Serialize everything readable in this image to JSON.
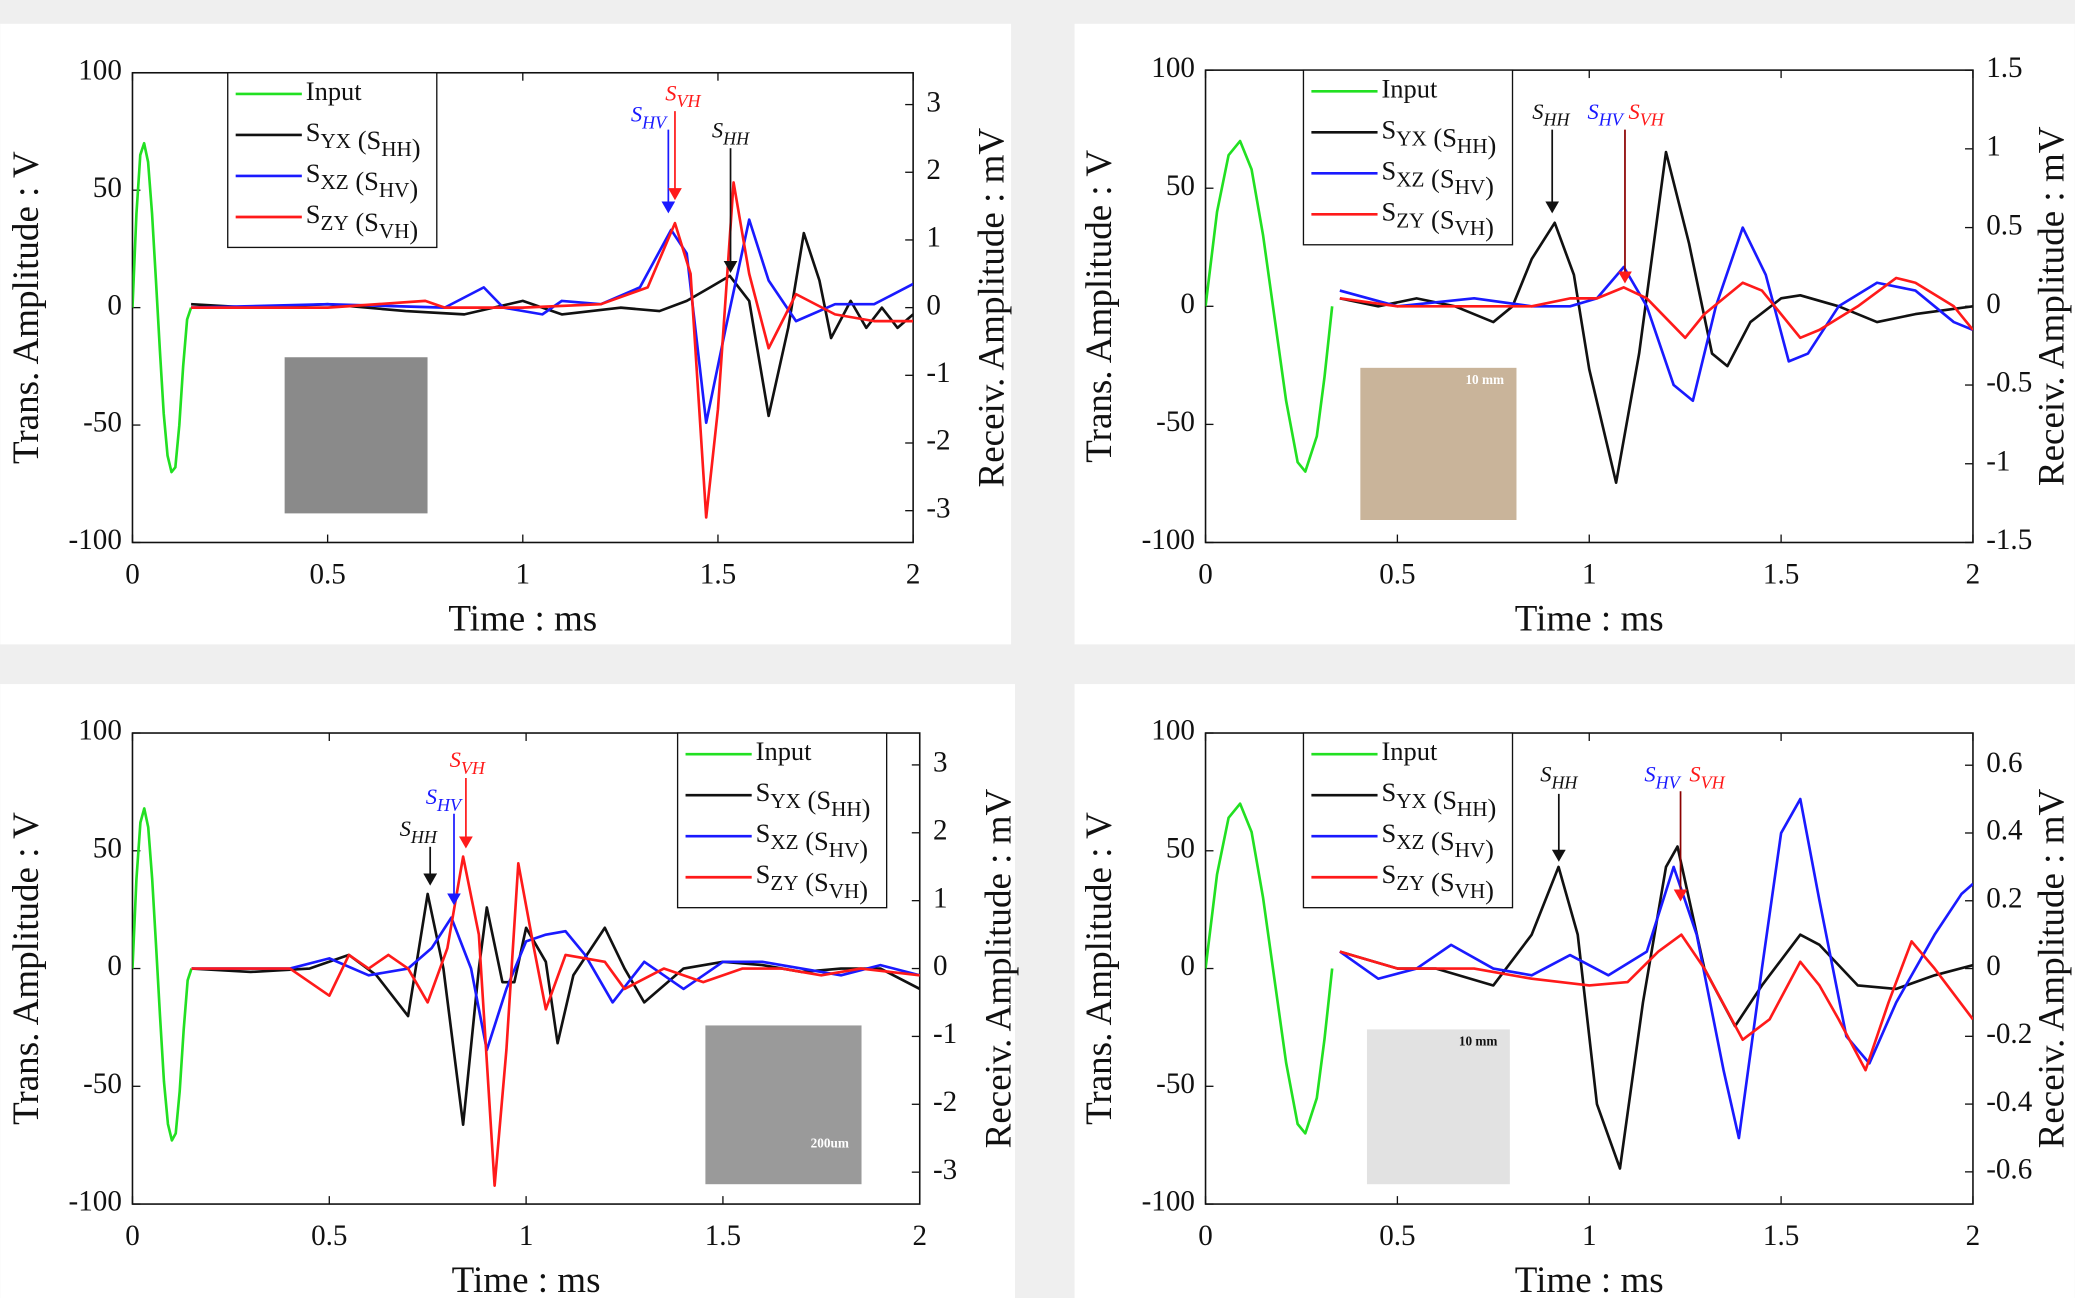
{
  "chart_data": [
    {
      "type": "line",
      "xlabel": "Time : ms",
      "ylabel": "Trans. Amplitude : V",
      "y2label": "Receiv. Amplitude : mV",
      "xlim": [
        0,
        2
      ],
      "xticks": [
        0,
        0.5,
        1,
        1.5,
        2
      ],
      "ylim": [
        -100,
        100
      ],
      "yticks": [
        -100,
        -50,
        0,
        50,
        100
      ],
      "y2lim": [
        -3.47,
        3.47
      ],
      "y2ticks": [
        -3,
        -2,
        -1,
        0,
        1,
        2,
        3
      ],
      "legend": "upper left",
      "series": [
        {
          "name": "Input",
          "color": "#22e022",
          "x": [
            0,
            0.01,
            0.02,
            0.03,
            0.04,
            0.05,
            0.06,
            0.07,
            0.08,
            0.09,
            0.1,
            0.11,
            0.12,
            0.13,
            0.14,
            0.15
          ],
          "values": [
            0,
            40,
            65,
            70,
            62,
            40,
            12,
            -18,
            -45,
            -63,
            -70,
            -68,
            -50,
            -25,
            -5,
            0
          ]
        },
        {
          "name": "SYX (SHH)",
          "color": "#111111",
          "axis": "y2",
          "x": [
            0.15,
            0.3,
            0.5,
            0.7,
            0.85,
            1.0,
            1.1,
            1.25,
            1.35,
            1.42,
            1.48,
            1.53,
            1.58,
            1.63,
            1.68,
            1.72,
            1.76,
            1.79,
            1.84,
            1.88,
            1.92,
            1.96,
            2.0
          ],
          "values": [
            0.05,
            0,
            0.05,
            -0.05,
            -0.1,
            0.1,
            -0.1,
            0,
            -0.05,
            0.1,
            0.3,
            0.47,
            0.1,
            -1.6,
            -0.3,
            1.1,
            0.4,
            -0.45,
            0.1,
            -0.3,
            0,
            -0.3,
            -0.1
          ]
        },
        {
          "name": "SXZ (SHV)",
          "color": "#1a1aff",
          "axis": "y2",
          "x": [
            0.15,
            0.5,
            0.8,
            0.9,
            0.95,
            1.05,
            1.1,
            1.2,
            1.3,
            1.38,
            1.42,
            1.47,
            1.52,
            1.58,
            1.63,
            1.7,
            1.8,
            1.9,
            2.0
          ],
          "values": [
            0,
            0.05,
            0,
            0.3,
            0,
            -0.1,
            0.1,
            0.05,
            0.3,
            1.15,
            0.8,
            -1.7,
            -0.3,
            1.3,
            0.4,
            -0.2,
            0.05,
            0.05,
            0.35
          ]
        },
        {
          "name": "SZY (SVH)",
          "color": "#ff1a1a",
          "axis": "y2",
          "x": [
            0.15,
            0.5,
            0.75,
            0.8,
            1.0,
            1.2,
            1.32,
            1.39,
            1.43,
            1.47,
            1.5,
            1.54,
            1.58,
            1.63,
            1.7,
            1.8,
            1.9,
            2.0
          ],
          "values": [
            0,
            0,
            0.1,
            0,
            0,
            0.05,
            0.3,
            1.25,
            0.5,
            -3.1,
            -1.5,
            1.85,
            0.5,
            -0.6,
            0.2,
            -0.1,
            -0.2,
            -0.2
          ]
        }
      ],
      "annotations": [
        {
          "text": "SHV",
          "color": "#1a1aff"
        },
        {
          "text": "SVH",
          "color": "#ff1a1a"
        },
        {
          "text": "SHH",
          "color": "#111111"
        }
      ]
    },
    {
      "type": "line",
      "xlabel": "Time : ms",
      "ylabel": "Trans. Amplitude : V",
      "y2label": "Receiv. Amplitude : mV",
      "xlim": [
        0,
        2
      ],
      "xticks": [
        0,
        0.5,
        1,
        1.5,
        2
      ],
      "ylim": [
        -100,
        100
      ],
      "yticks": [
        -100,
        -50,
        0,
        50,
        100
      ],
      "y2lim": [
        -1.5,
        1.5
      ],
      "y2ticks": [
        -1.5,
        -1,
        -0.5,
        0,
        0.5,
        1,
        1.5
      ],
      "legend": "upper left",
      "series": [
        {
          "name": "Input",
          "color": "#22e022",
          "x": [
            0,
            0.03,
            0.06,
            0.09,
            0.12,
            0.15,
            0.18,
            0.21,
            0.24,
            0.26,
            0.29,
            0.31,
            0.33
          ],
          "values": [
            0,
            40,
            64,
            70,
            58,
            30,
            -5,
            -40,
            -66,
            -70,
            -55,
            -30,
            0
          ]
        },
        {
          "name": "SYX (SHH)",
          "color": "#111111",
          "axis": "y2",
          "x": [
            0.35,
            0.45,
            0.55,
            0.65,
            0.75,
            0.8,
            0.85,
            0.91,
            0.96,
            1.0,
            1.07,
            1.13,
            1.2,
            1.26,
            1.32,
            1.36,
            1.42,
            1.5,
            1.55,
            1.65,
            1.75,
            1.85,
            2.0
          ],
          "values": [
            0.05,
            0,
            0.05,
            0,
            -0.1,
            0,
            0.3,
            0.53,
            0.2,
            -0.4,
            -1.12,
            -0.3,
            0.98,
            0.4,
            -0.3,
            -0.38,
            -0.1,
            0.05,
            0.07,
            0,
            -0.1,
            -0.05,
            0
          ]
        },
        {
          "name": "SXZ (SHV)",
          "color": "#1a1aff",
          "axis": "y2",
          "x": [
            0.35,
            0.5,
            0.7,
            0.85,
            0.95,
            1.02,
            1.09,
            1.15,
            1.22,
            1.27,
            1.33,
            1.4,
            1.46,
            1.52,
            1.57,
            1.65,
            1.75,
            1.85,
            1.95,
            2.0
          ],
          "values": [
            0.1,
            0,
            0.05,
            0,
            0,
            0.05,
            0.25,
            0,
            -0.5,
            -0.6,
            0,
            0.5,
            0.2,
            -0.35,
            -0.3,
            0,
            0.15,
            0.1,
            -0.1,
            -0.15
          ]
        },
        {
          "name": "SZY (SVH)",
          "color": "#ff1a1a",
          "axis": "y2",
          "x": [
            0.35,
            0.5,
            0.7,
            0.85,
            0.95,
            1.02,
            1.09,
            1.15,
            1.25,
            1.3,
            1.4,
            1.45,
            1.55,
            1.6,
            1.7,
            1.8,
            1.85,
            1.95,
            2.0
          ],
          "values": [
            0.05,
            0,
            0,
            0,
            0.05,
            0.05,
            0.12,
            0.05,
            -0.2,
            -0.05,
            0.15,
            0.1,
            -0.2,
            -0.15,
            0,
            0.18,
            0.15,
            0,
            -0.15
          ]
        }
      ],
      "annotations": [
        {
          "text": "SHH",
          "color": "#111111"
        },
        {
          "text": "SHV",
          "color": "#1a1aff"
        },
        {
          "text": "SVH",
          "color": "#ff1a1a"
        }
      ],
      "inset_label": "10 mm"
    },
    {
      "type": "line",
      "xlabel": "Time : ms",
      "ylabel": "Trans. Amplitude : V",
      "y2label": "Receiv. Amplitude : mV",
      "xlim": [
        0,
        2
      ],
      "xticks": [
        0,
        0.5,
        1,
        1.5,
        2
      ],
      "ylim": [
        -100,
        100
      ],
      "yticks": [
        -100,
        -50,
        0,
        50,
        100
      ],
      "y2lim": [
        -3.47,
        3.47
      ],
      "y2ticks": [
        -3,
        -2,
        -1,
        0,
        1,
        2,
        3
      ],
      "legend": "upper right",
      "series": [
        {
          "name": "Input",
          "color": "#22e022",
          "x": [
            0,
            0.01,
            0.02,
            0.03,
            0.04,
            0.05,
            0.06,
            0.07,
            0.08,
            0.09,
            0.1,
            0.11,
            0.12,
            0.13,
            0.14,
            0.15
          ],
          "values": [
            0,
            38,
            62,
            68,
            60,
            38,
            10,
            -20,
            -48,
            -66,
            -73,
            -70,
            -52,
            -26,
            -5,
            0
          ]
        },
        {
          "name": "SYX (SHH)",
          "color": "#111111",
          "axis": "y2",
          "x": [
            0.15,
            0.3,
            0.45,
            0.55,
            0.62,
            0.7,
            0.75,
            0.79,
            0.84,
            0.88,
            0.9,
            0.94,
            0.97,
            1.0,
            1.05,
            1.08,
            1.12,
            1.2,
            1.25,
            1.3,
            1.4,
            1.5,
            1.6,
            1.7,
            1.8,
            1.9,
            2.0
          ],
          "values": [
            0,
            -0.05,
            0,
            0.2,
            -0.1,
            -0.7,
            1.1,
            0,
            -2.3,
            0,
            0.9,
            -0.2,
            -0.2,
            0.6,
            0.1,
            -1.1,
            -0.1,
            0.6,
            0,
            -0.5,
            0,
            0.1,
            0.05,
            -0.05,
            0,
            0,
            -0.3
          ]
        },
        {
          "name": "SXZ (SHV)",
          "color": "#1a1aff",
          "axis": "y2",
          "x": [
            0.15,
            0.4,
            0.5,
            0.6,
            0.7,
            0.76,
            0.81,
            0.86,
            0.9,
            0.95,
            1.0,
            1.05,
            1.1,
            1.15,
            1.22,
            1.3,
            1.4,
            1.5,
            1.6,
            1.7,
            1.8,
            1.9,
            2.0
          ],
          "values": [
            0,
            0,
            0.15,
            -0.1,
            0,
            0.3,
            0.75,
            0,
            -1.2,
            -0.3,
            0.4,
            0.5,
            0.55,
            0.2,
            -0.5,
            0.1,
            -0.3,
            0.1,
            0.1,
            0,
            -0.1,
            0.05,
            -0.1
          ]
        },
        {
          "name": "SZY (SVH)",
          "color": "#ff1a1a",
          "axis": "y2",
          "x": [
            0.15,
            0.4,
            0.5,
            0.55,
            0.6,
            0.65,
            0.7,
            0.75,
            0.8,
            0.84,
            0.88,
            0.92,
            0.95,
            0.98,
            1.02,
            1.05,
            1.1,
            1.2,
            1.25,
            1.35,
            1.45,
            1.55,
            1.65,
            1.75,
            1.85,
            2.0
          ],
          "values": [
            0,
            0,
            -0.4,
            0.2,
            0,
            0.2,
            0,
            -0.5,
            0.3,
            1.65,
            0.5,
            -3.2,
            -1.2,
            1.55,
            0.3,
            -0.6,
            0.2,
            0.1,
            -0.3,
            0,
            -0.2,
            0,
            0,
            -0.1,
            0,
            -0.1
          ]
        }
      ],
      "annotations": [
        {
          "text": "SHH",
          "color": "#111111"
        },
        {
          "text": "SHV",
          "color": "#1a1aff"
        },
        {
          "text": "SVH",
          "color": "#ff1a1a"
        }
      ],
      "inset_label": "200um"
    },
    {
      "type": "line",
      "xlabel": "Time : ms",
      "ylabel": "Trans. Amplitude : V",
      "y2label": "Receiv. Amplitude : mV",
      "xlim": [
        0,
        2
      ],
      "xticks": [
        0,
        0.5,
        1,
        1.5,
        2
      ],
      "ylim": [
        -100,
        100
      ],
      "yticks": [
        -100,
        -50,
        0,
        50,
        100
      ],
      "y2lim": [
        -0.695,
        0.695
      ],
      "y2ticks": [
        -0.6,
        -0.4,
        -0.2,
        0,
        0.2,
        0.4,
        0.6
      ],
      "legend": "upper left",
      "series": [
        {
          "name": "Input",
          "color": "#22e022",
          "x": [
            0,
            0.03,
            0.06,
            0.09,
            0.12,
            0.15,
            0.18,
            0.21,
            0.24,
            0.26,
            0.29,
            0.31,
            0.33
          ],
          "values": [
            0,
            40,
            64,
            70,
            58,
            30,
            -5,
            -40,
            -66,
            -70,
            -55,
            -30,
            0
          ]
        },
        {
          "name": "SYX (SHH)",
          "color": "#111111",
          "axis": "y2",
          "x": [
            0.35,
            0.5,
            0.6,
            0.75,
            0.85,
            0.92,
            0.97,
            1.02,
            1.08,
            1.14,
            1.2,
            1.23,
            1.3,
            1.38,
            1.45,
            1.55,
            1.6,
            1.7,
            1.8,
            1.9,
            2.0
          ],
          "values": [
            0.05,
            0,
            0,
            -0.05,
            0.1,
            0.3,
            0.1,
            -0.4,
            -0.59,
            -0.1,
            0.3,
            0.36,
            0,
            -0.17,
            -0.05,
            0.1,
            0.07,
            -0.05,
            -0.06,
            -0.02,
            0.01
          ]
        },
        {
          "name": "SXZ (SHV)",
          "color": "#1a1aff",
          "axis": "y2",
          "x": [
            0.35,
            0.45,
            0.55,
            0.64,
            0.75,
            0.85,
            0.95,
            1.05,
            1.15,
            1.22,
            1.28,
            1.35,
            1.39,
            1.45,
            1.5,
            1.55,
            1.6,
            1.67,
            1.73,
            1.8,
            1.9,
            1.97,
            2.0
          ],
          "values": [
            0.05,
            -0.03,
            0,
            0.07,
            0,
            -0.02,
            0.04,
            -0.02,
            0.05,
            0.3,
            0.1,
            -0.3,
            -0.5,
            0,
            0.4,
            0.5,
            0.2,
            -0.2,
            -0.28,
            -0.1,
            0.1,
            0.22,
            0.25
          ]
        },
        {
          "name": "SZY (SVH)",
          "color": "#ff1a1a",
          "axis": "y2",
          "x": [
            0.35,
            0.5,
            0.7,
            0.85,
            1.0,
            1.1,
            1.18,
            1.24,
            1.3,
            1.4,
            1.47,
            1.55,
            1.6,
            1.65,
            1.72,
            1.78,
            1.84,
            1.9,
            2.0
          ],
          "values": [
            0.05,
            0,
            0,
            -0.03,
            -0.05,
            -0.04,
            0.05,
            0.1,
            0,
            -0.21,
            -0.15,
            0.02,
            -0.05,
            -0.15,
            -0.3,
            -0.1,
            0.08,
            0,
            -0.15
          ]
        }
      ],
      "annotations": [
        {
          "text": "SHH",
          "color": "#111111"
        },
        {
          "text": "SHV",
          "color": "#1a1aff"
        },
        {
          "text": "SVH",
          "color": "#ff1a1a"
        }
      ],
      "inset_label": "10 mm"
    }
  ]
}
